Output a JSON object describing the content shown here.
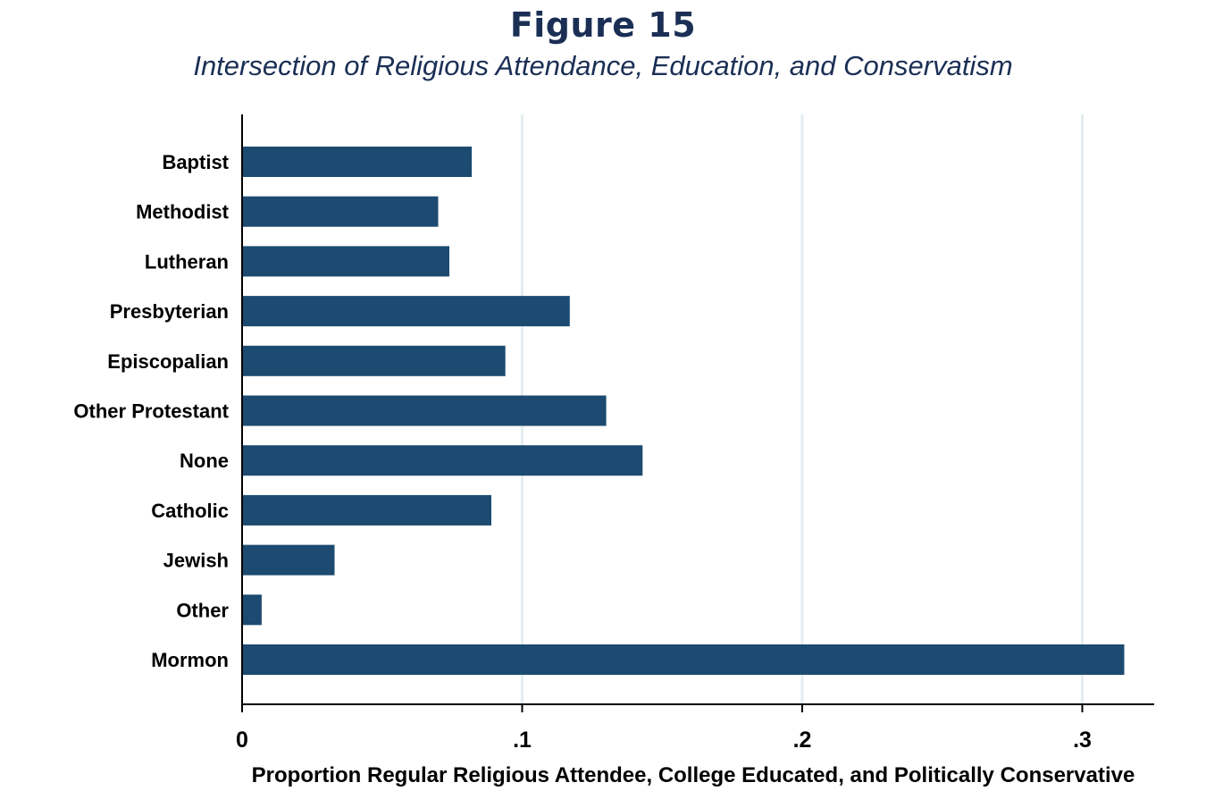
{
  "header": {
    "title": "Figure 15",
    "subtitle": "Intersection of Religious Attendance, Education, and Conservatism"
  },
  "colors": {
    "bar": "#1c4a70",
    "grid": "#e4eef1",
    "axis": "#000000",
    "title": "#1b2f55"
  },
  "chart_data": {
    "type": "bar",
    "orientation": "horizontal",
    "title": "Figure 15",
    "subtitle": "Intersection of Religious Attendance, Education, and Conservatism",
    "xlabel": "Proportion Regular Religious Attendee, College Educated, and Politically Conservative",
    "ylabel": "",
    "categories": [
      "Baptist",
      "Methodist",
      "Lutheran",
      "Presbyterian",
      "Episcopalian",
      "Other Protestant",
      "None",
      "Catholic",
      "Jewish",
      "Other",
      "Mormon"
    ],
    "values": [
      0.082,
      0.07,
      0.074,
      0.117,
      0.094,
      0.13,
      0.143,
      0.089,
      0.033,
      0.007,
      0.315
    ],
    "xlim": [
      0,
      0.325
    ],
    "xticks": [
      0,
      0.1,
      0.2,
      0.3
    ],
    "xtick_labels": [
      "0",
      ".1",
      ".2",
      ".3"
    ],
    "grid": true,
    "legend": "none"
  }
}
